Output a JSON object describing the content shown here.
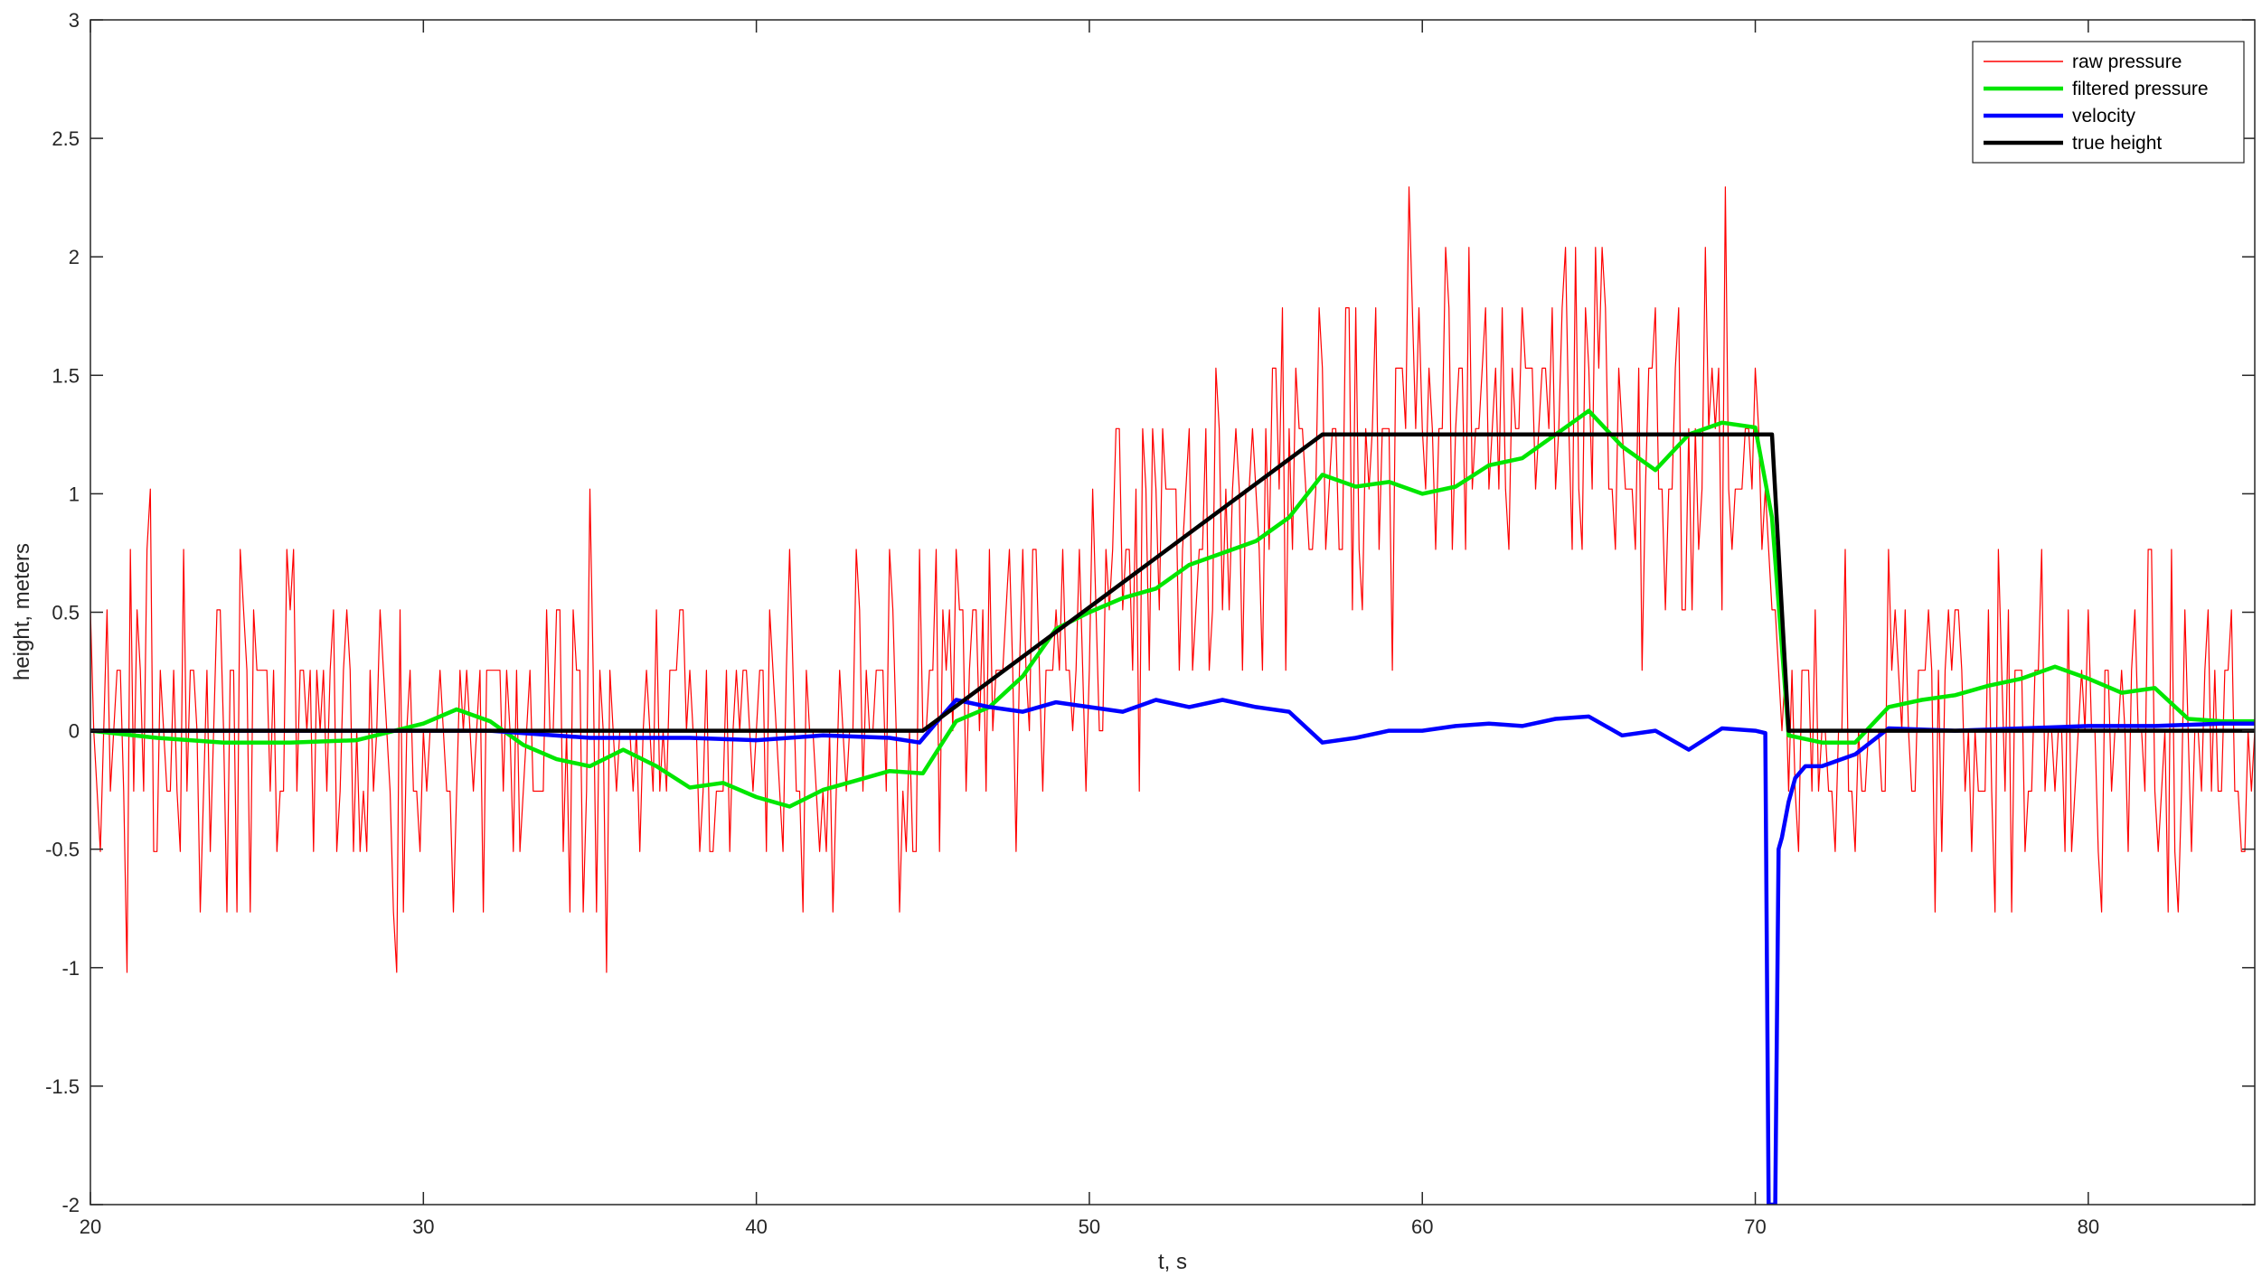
{
  "chart_data": {
    "type": "line",
    "title": "",
    "xlabel": "t, s",
    "ylabel": "height, meters",
    "xlim": [
      20,
      85
    ],
    "ylim": [
      -2,
      3
    ],
    "xticks": [
      20,
      30,
      40,
      50,
      60,
      70,
      80
    ],
    "yticks": [
      -2,
      -1.5,
      -1,
      -0.5,
      0,
      0.5,
      1,
      1.5,
      2,
      2.5,
      3
    ],
    "ytick_labels": [
      "-2",
      "-1.5",
      "-1",
      "-0.5",
      "0",
      "0.5",
      "1",
      "1.5",
      "2",
      "2.5",
      "3"
    ],
    "grid": false,
    "legend_position": "top-right",
    "series": [
      {
        "name": "raw pressure",
        "color": "#ff0000",
        "style": "thin",
        "noisy": true,
        "sample_step": 0.1,
        "noise_amplitude": 0.6,
        "quantization": 0.255,
        "x": [
          20,
          45,
          57,
          70.5,
          71,
          85
        ],
        "y": [
          0,
          0,
          1.25,
          1.25,
          0,
          0
        ]
      },
      {
        "name": "filtered pressure",
        "color": "#00e600",
        "style": "thick",
        "x": [
          20,
          22,
          24,
          26,
          28,
          30,
          31,
          32,
          33,
          34,
          35,
          36,
          37,
          38,
          39,
          40,
          41,
          42,
          43,
          44,
          45,
          46,
          47,
          48,
          49,
          50,
          51,
          52,
          53,
          54,
          55,
          56,
          57,
          58,
          59,
          60,
          61,
          62,
          63,
          64,
          65,
          66,
          67,
          68,
          69,
          70,
          70.5,
          71,
          72,
          73,
          74,
          75,
          76,
          77,
          78,
          79,
          80,
          81,
          82,
          83,
          84,
          85
        ],
        "y": [
          0,
          -0.03,
          -0.05,
          -0.05,
          -0.04,
          0.03,
          0.09,
          0.04,
          -0.06,
          -0.12,
          -0.15,
          -0.08,
          -0.15,
          -0.24,
          -0.22,
          -0.28,
          -0.32,
          -0.25,
          -0.21,
          -0.17,
          -0.18,
          0.04,
          0.1,
          0.23,
          0.43,
          0.5,
          0.56,
          0.6,
          0.7,
          0.75,
          0.8,
          0.9,
          1.08,
          1.03,
          1.05,
          1.0,
          1.03,
          1.12,
          1.15,
          1.25,
          1.35,
          1.2,
          1.1,
          1.25,
          1.3,
          1.28,
          0.9,
          -0.02,
          -0.05,
          -0.05,
          0.1,
          0.13,
          0.15,
          0.19,
          0.22,
          0.27,
          0.22,
          0.16,
          0.18,
          0.05,
          0.04,
          0.04
        ]
      },
      {
        "name": "velocity",
        "color": "#0000ff",
        "style": "thick",
        "x": [
          20,
          30,
          32,
          35,
          38,
          40,
          42,
          44,
          44.9,
          45.5,
          46,
          47,
          48,
          49,
          50,
          51,
          52,
          53,
          54,
          55,
          56,
          57,
          58,
          59,
          60,
          61,
          62,
          63,
          64,
          65,
          66,
          67,
          68,
          69,
          70,
          70.3,
          70.4,
          70.5,
          70.6,
          70.7,
          70.8,
          71,
          71.2,
          71.5,
          72,
          73,
          74,
          76,
          78,
          80,
          82,
          84,
          85
        ],
        "y": [
          0,
          0,
          0,
          -0.03,
          -0.03,
          -0.04,
          -0.02,
          -0.03,
          -0.05,
          0.05,
          0.13,
          0.1,
          0.08,
          0.12,
          0.1,
          0.08,
          0.13,
          0.1,
          0.13,
          0.1,
          0.08,
          -0.05,
          -0.03,
          0,
          0,
          0.02,
          0.03,
          0.02,
          0.05,
          0.06,
          -0.02,
          0,
          -0.08,
          0.01,
          0,
          -0.01,
          -2.0,
          -2.0,
          -2.0,
          -0.5,
          -0.45,
          -0.3,
          -0.2,
          -0.15,
          -0.15,
          -0.1,
          0.01,
          0,
          0.01,
          0.02,
          0.02,
          0.03,
          0.03
        ]
      },
      {
        "name": "true height",
        "color": "#000000",
        "style": "thick",
        "x": [
          20,
          45,
          57,
          70.5,
          71,
          85
        ],
        "y": [
          0,
          0,
          1.25,
          1.25,
          0,
          0
        ]
      }
    ]
  }
}
